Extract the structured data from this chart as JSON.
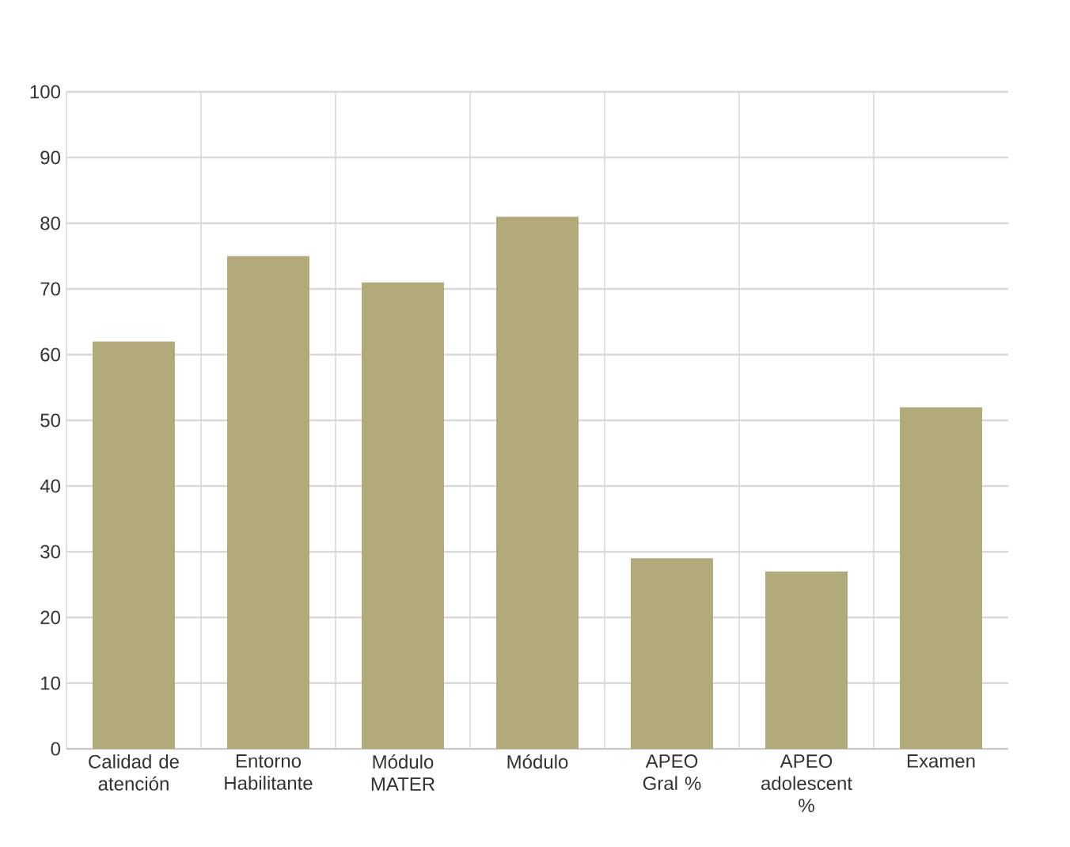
{
  "chart_data": {
    "type": "bar",
    "categories": [
      "Calidad de atención",
      "Entorno Habilitante",
      "Módulo MATER",
      "Módulo",
      "APEO Gral %",
      "APEO adolescent %",
      "Examen"
    ],
    "values": [
      62,
      75,
      71,
      81,
      29,
      27,
      52
    ],
    "color": "#b2aa7b",
    "ylim": [
      0,
      100
    ],
    "yticks": [
      0,
      10,
      20,
      30,
      40,
      50,
      60,
      70,
      80,
      90,
      100
    ],
    "grid": true
  }
}
